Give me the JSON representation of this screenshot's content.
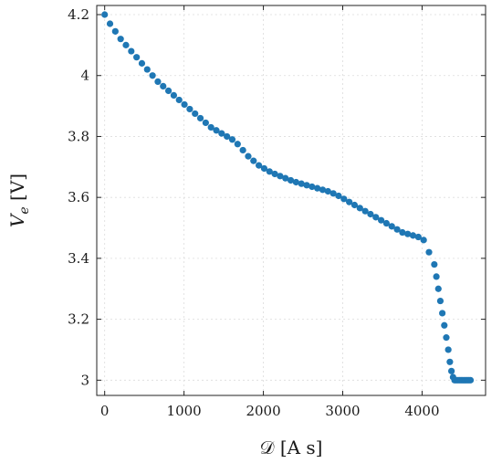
{
  "chart_data": {
    "type": "scatter",
    "xlabel": "𝒟 [A s]",
    "ylabel": "V_e [V]",
    "xlim": [
      -100,
      4800
    ],
    "ylim": [
      2.95,
      4.23
    ],
    "xticks": [
      0,
      1000,
      2000,
      3000,
      4000
    ],
    "yticks": [
      3,
      3.2,
      3.4,
      3.6,
      3.8,
      4,
      4.2
    ],
    "xtick_labels": [
      "0",
      "1000",
      "2000",
      "3000",
      "4000"
    ],
    "ytick_labels": [
      "3",
      "3.2",
      "3.4",
      "3.6",
      "3.8",
      "4",
      "4.2"
    ],
    "grid": true,
    "marker_color": "#1f77b4",
    "series": [
      {
        "x": [
          0,
          67,
          134,
          201,
          268,
          335,
          402,
          469,
          536,
          603,
          670,
          737,
          804,
          871,
          938,
          1005,
          1072,
          1139,
          1206,
          1273,
          1340,
          1407,
          1474,
          1541,
          1608,
          1675,
          1742,
          1809,
          1876,
          1943,
          2010,
          2077,
          2144,
          2211,
          2278,
          2345,
          2412,
          2479,
          2546,
          2613,
          2680,
          2747,
          2814,
          2881,
          2948,
          3015,
          3082,
          3149,
          3216,
          3283,
          3350,
          3417,
          3484,
          3551,
          3618,
          3685,
          3752,
          3819,
          3886,
          3953,
          4020,
          4087,
          4154,
          4180,
          4205,
          4230,
          4255,
          4280,
          4305,
          4330,
          4350,
          4370,
          4390,
          4410,
          4430,
          4450,
          4470,
          4490,
          4510,
          4530,
          4550,
          4570,
          4590,
          4610
        ],
        "y": [
          4.2,
          4.17,
          4.145,
          4.12,
          4.1,
          4.08,
          4.06,
          4.04,
          4.02,
          4.0,
          3.98,
          3.965,
          3.95,
          3.935,
          3.92,
          3.905,
          3.89,
          3.875,
          3.86,
          3.845,
          3.83,
          3.82,
          3.81,
          3.8,
          3.79,
          3.775,
          3.755,
          3.735,
          3.72,
          3.705,
          3.695,
          3.685,
          3.677,
          3.67,
          3.663,
          3.656,
          3.65,
          3.645,
          3.64,
          3.635,
          3.63,
          3.625,
          3.62,
          3.613,
          3.605,
          3.595,
          3.585,
          3.575,
          3.565,
          3.555,
          3.545,
          3.535,
          3.525,
          3.515,
          3.505,
          3.495,
          3.485,
          3.48,
          3.475,
          3.47,
          3.46,
          3.42,
          3.38,
          3.34,
          3.3,
          3.26,
          3.22,
          3.18,
          3.14,
          3.1,
          3.06,
          3.03,
          3.01,
          3.0,
          3.0,
          3.0,
          3.0,
          3.0,
          3.0,
          3.0,
          3.0,
          3.0,
          3.0,
          3.0
        ]
      }
    ]
  }
}
